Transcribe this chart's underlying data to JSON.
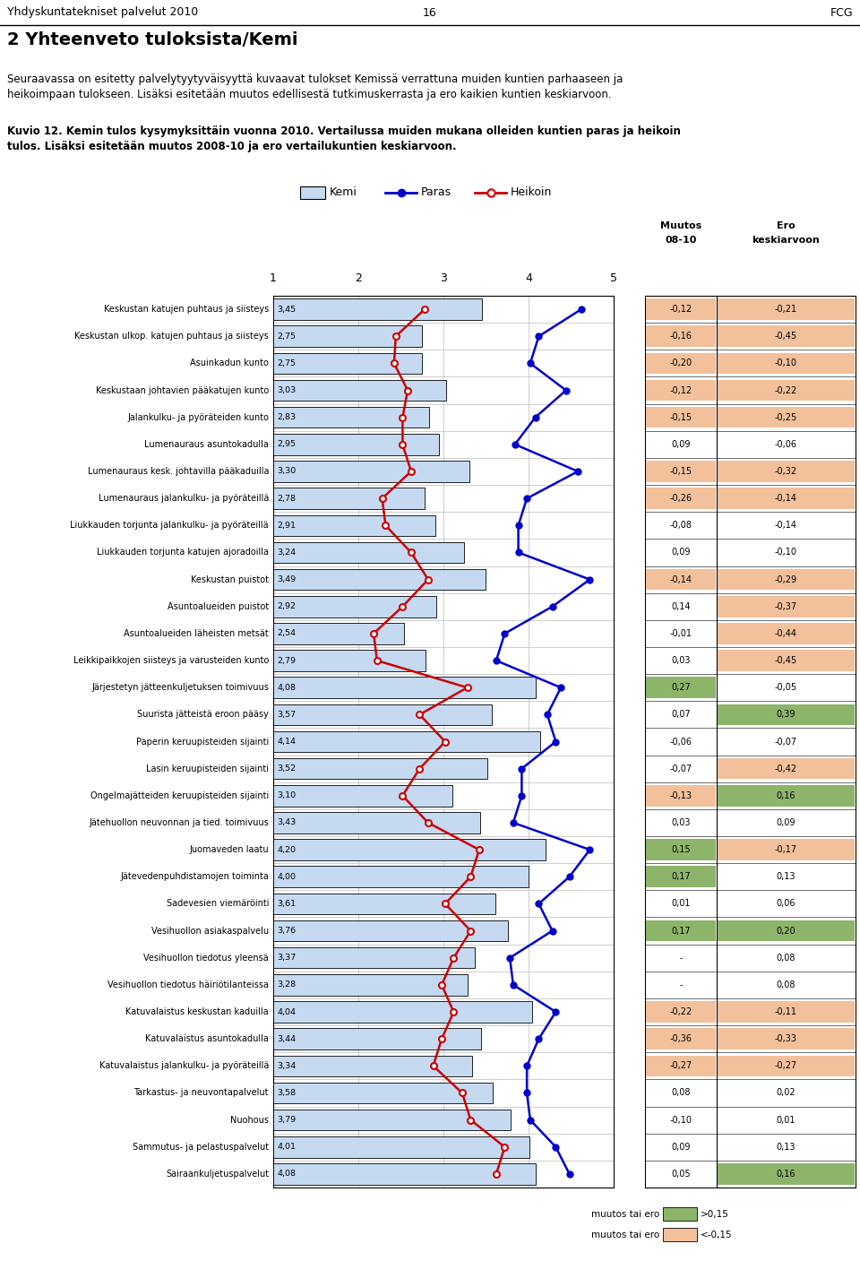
{
  "header_left": "Yhdyskuntatekniset palvelut 2010",
  "header_center": "16",
  "header_right": "FCG",
  "title": "2 Yhteenveto tuloksista/Kemi",
  "para1": "Seuraavassa on esitetty palvelytyytyväisyyttä kuvaavat tulokset Kemissä verrattuna muiden kuntien parhaaseen ja heikoimpaan tulokseen. Lisäksi esitetään muutos edellisestä tutkimuskerrasta ja ero kaikien kuntien keskiarvoon.",
  "para2_bold": "Kuvio 12. Kemin tulos kysymyksittäin vuonna 2010. Vertailussa muiden mukana olleiden kuntien paras ja heikoin tulos. Lisäksi esitetään muutos 2008-10 ja ero vertailukuntien keskiarvoon.",
  "col_muutos_top": "Muutos",
  "col_muutos_bot": "08-10",
  "col_ero_top": "Ero",
  "col_ero_bot": "keskiarvoon",
  "rows": [
    {
      "label": "Keskustan katujen puhtaus ja siisteys",
      "kemi": 3.45,
      "paras": 4.62,
      "heikoin": 2.78,
      "muutos": "-0,12",
      "ero": "-0,21",
      "mc": "#f2c09a",
      "ec": "#f2c09a"
    },
    {
      "label": "Keskustan ulkop. katujen puhtaus ja siisteys",
      "kemi": 2.75,
      "paras": 4.12,
      "heikoin": 2.44,
      "muutos": "-0,16",
      "ero": "-0,45",
      "mc": "#f2c09a",
      "ec": "#f2c09a"
    },
    {
      "label": "Asuinkadun kunto",
      "kemi": 2.75,
      "paras": 4.02,
      "heikoin": 2.42,
      "muutos": "-0,20",
      "ero": "-0,10",
      "mc": "#f2c09a",
      "ec": "#f2c09a"
    },
    {
      "label": "Keskustaan johtavien pääkatujen kunto",
      "kemi": 3.03,
      "paras": 4.44,
      "heikoin": 2.58,
      "muutos": "-0,12",
      "ero": "-0,22",
      "mc": "#f2c09a",
      "ec": "#f2c09a"
    },
    {
      "label": "Jalankulku- ja pyöräteiden kunto",
      "kemi": 2.83,
      "paras": 4.08,
      "heikoin": 2.52,
      "muutos": "-0,15",
      "ero": "-0,25",
      "mc": "#f2c09a",
      "ec": "#f2c09a"
    },
    {
      "label": "Lumenauraus asuntokadulla",
      "kemi": 2.95,
      "paras": 3.84,
      "heikoin": 2.52,
      "muutos": "0,09",
      "ero": "-0,06",
      "mc": "#ffffff",
      "ec": "#ffffff"
    },
    {
      "label": "Lumenauraus kesk. johtavilla pääkaduilla",
      "kemi": 3.3,
      "paras": 4.58,
      "heikoin": 2.62,
      "muutos": "-0,15",
      "ero": "-0,32",
      "mc": "#f2c09a",
      "ec": "#f2c09a"
    },
    {
      "label": "Lumenauraus jalankulku- ja pyöräteillä",
      "kemi": 2.78,
      "paras": 3.98,
      "heikoin": 2.28,
      "muutos": "-0,26",
      "ero": "-0,14",
      "mc": "#f2c09a",
      "ec": "#f2c09a"
    },
    {
      "label": "Liukkauden torjunta jalankulku- ja pyöräteillä",
      "kemi": 2.91,
      "paras": 3.88,
      "heikoin": 2.32,
      "muutos": "-0,08",
      "ero": "-0,14",
      "mc": "#ffffff",
      "ec": "#ffffff"
    },
    {
      "label": "Liukkauden torjunta katujen ajoradoilla",
      "kemi": 3.24,
      "paras": 3.88,
      "heikoin": 2.62,
      "muutos": "0,09",
      "ero": "-0,10",
      "mc": "#ffffff",
      "ec": "#ffffff"
    },
    {
      "label": "Keskustan puistot",
      "kemi": 3.49,
      "paras": 4.72,
      "heikoin": 2.82,
      "muutos": "-0,14",
      "ero": "-0,29",
      "mc": "#f2c09a",
      "ec": "#f2c09a"
    },
    {
      "label": "Asuntoalueiden puistot",
      "kemi": 2.92,
      "paras": 4.28,
      "heikoin": 2.52,
      "muutos": "0,14",
      "ero": "-0,37",
      "mc": "#ffffff",
      "ec": "#f2c09a"
    },
    {
      "label": "Asuntoalueiden läheisten metsät",
      "kemi": 2.54,
      "paras": 3.72,
      "heikoin": 2.18,
      "muutos": "-0,01",
      "ero": "-0,44",
      "mc": "#ffffff",
      "ec": "#f2c09a"
    },
    {
      "label": "Leikkipaikkojen siisteys ja varusteiden kunto",
      "kemi": 2.79,
      "paras": 3.62,
      "heikoin": 2.22,
      "muutos": "0,03",
      "ero": "-0,45",
      "mc": "#ffffff",
      "ec": "#f2c09a"
    },
    {
      "label": "Järjestetyn jätteenkuljetuksen toimivuus",
      "kemi": 4.08,
      "paras": 4.38,
      "heikoin": 3.28,
      "muutos": "0,27",
      "ero": "-0,05",
      "mc": "#8db56a",
      "ec": "#ffffff"
    },
    {
      "label": "Suurista jätteistä eroon pääsy",
      "kemi": 3.57,
      "paras": 4.22,
      "heikoin": 2.72,
      "muutos": "0,07",
      "ero": "0,39",
      "mc": "#ffffff",
      "ec": "#8db56a"
    },
    {
      "label": "Paperin keruupisteiden sijainti",
      "kemi": 4.14,
      "paras": 4.32,
      "heikoin": 3.02,
      "muutos": "-0,06",
      "ero": "-0,07",
      "mc": "#ffffff",
      "ec": "#ffffff"
    },
    {
      "label": "Lasin keruupisteiden sijainti",
      "kemi": 3.52,
      "paras": 3.92,
      "heikoin": 2.72,
      "muutos": "-0,07",
      "ero": "-0,42",
      "mc": "#ffffff",
      "ec": "#f2c09a"
    },
    {
      "label": "Ongelmajätteiden keruupisteiden sijainti",
      "kemi": 3.1,
      "paras": 3.92,
      "heikoin": 2.52,
      "muutos": "-0,13",
      "ero": "0,16",
      "mc": "#f2c09a",
      "ec": "#8db56a"
    },
    {
      "label": "Jätehuollon neuvonnan ja tied. toimivuus",
      "kemi": 3.43,
      "paras": 3.82,
      "heikoin": 2.82,
      "muutos": "0,03",
      "ero": "0,09",
      "mc": "#ffffff",
      "ec": "#ffffff"
    },
    {
      "label": "Juomaveden laatu",
      "kemi": 4.2,
      "paras": 4.72,
      "heikoin": 3.42,
      "muutos": "0,15",
      "ero": "-0,17",
      "mc": "#8db56a",
      "ec": "#f2c09a"
    },
    {
      "label": "Jätevedenpuhdistamojen toiminta",
      "kemi": 4.0,
      "paras": 4.48,
      "heikoin": 3.32,
      "muutos": "0,17",
      "ero": "0,13",
      "mc": "#8db56a",
      "ec": "#ffffff"
    },
    {
      "label": "Sadevesien viemäröinti",
      "kemi": 3.61,
      "paras": 4.12,
      "heikoin": 3.02,
      "muutos": "0,01",
      "ero": "0,06",
      "mc": "#ffffff",
      "ec": "#ffffff"
    },
    {
      "label": "Vesihuollon asiakaspalvelu",
      "kemi": 3.76,
      "paras": 4.28,
      "heikoin": 3.32,
      "muutos": "0,17",
      "ero": "0,20",
      "mc": "#8db56a",
      "ec": "#8db56a"
    },
    {
      "label": "Vesihuollon tiedotus yleensä",
      "kemi": 3.37,
      "paras": 3.78,
      "heikoin": 3.12,
      "muutos": "-",
      "ero": "0,08",
      "mc": "#ffffff",
      "ec": "#ffffff"
    },
    {
      "label": "Vesihuollon tiedotus häiriötilanteissa",
      "kemi": 3.28,
      "paras": 3.82,
      "heikoin": 2.98,
      "muutos": "-",
      "ero": "0,08",
      "mc": "#ffffff",
      "ec": "#ffffff"
    },
    {
      "label": "Katuvalaistus keskustan kaduilla",
      "kemi": 4.04,
      "paras": 4.32,
      "heikoin": 3.12,
      "muutos": "-0,22",
      "ero": "-0,11",
      "mc": "#f2c09a",
      "ec": "#f2c09a"
    },
    {
      "label": "Katuvalaistus asuntokadulla",
      "kemi": 3.44,
      "paras": 4.12,
      "heikoin": 2.98,
      "muutos": "-0,36",
      "ero": "-0,33",
      "mc": "#f2c09a",
      "ec": "#f2c09a"
    },
    {
      "label": "Katuvalaistus jalankulku- ja pyöräteillä",
      "kemi": 3.34,
      "paras": 3.98,
      "heikoin": 2.88,
      "muutos": "-0,27",
      "ero": "-0,27",
      "mc": "#f2c09a",
      "ec": "#f2c09a"
    },
    {
      "label": "Tarkastus- ja neuvontapalvelut",
      "kemi": 3.58,
      "paras": 3.98,
      "heikoin": 3.22,
      "muutos": "0,08",
      "ero": "0,02",
      "mc": "#ffffff",
      "ec": "#ffffff"
    },
    {
      "label": "Nuohous",
      "kemi": 3.79,
      "paras": 4.02,
      "heikoin": 3.32,
      "muutos": "-0,10",
      "ero": "0,01",
      "mc": "#ffffff",
      "ec": "#ffffff"
    },
    {
      "label": "Sammutus- ja pelastuspalvelut",
      "kemi": 4.01,
      "paras": 4.32,
      "heikoin": 3.72,
      "muutos": "0,09",
      "ero": "0,13",
      "mc": "#ffffff",
      "ec": "#ffffff"
    },
    {
      "label": "Sairaankuljetuspalvelut",
      "kemi": 4.08,
      "paras": 4.48,
      "heikoin": 3.62,
      "muutos": "0,05",
      "ero": "0,16",
      "mc": "#ffffff",
      "ec": "#8db56a"
    }
  ],
  "bar_color": "#c5d9f1",
  "bar_edge": "#000000",
  "paras_color": "#0000cc",
  "heikoin_color": "#cc0000",
  "grid_color": "#bbbbbb",
  "green_color": "#8db56a",
  "orange_color": "#f2c09a",
  "footer_green_val": ">0,15",
  "footer_orange_val": "<-0,15"
}
